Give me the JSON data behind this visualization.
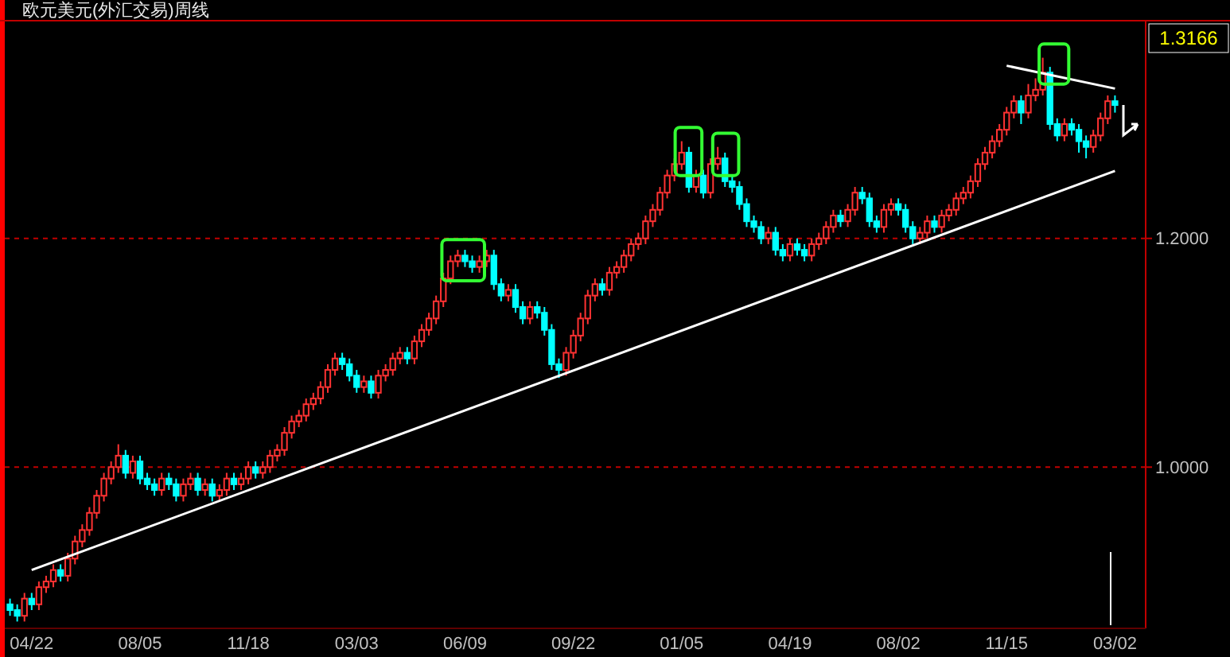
{
  "chart_data": {
    "type": "candlestick",
    "title": "欧元美元(外汇交易)周线",
    "categories": [
      null,
      null,
      null,
      "04/22",
      null,
      null,
      null,
      null,
      null,
      null,
      null,
      null,
      null,
      null,
      null,
      null,
      null,
      null,
      "08/05",
      null,
      null,
      null,
      null,
      null,
      null,
      null,
      null,
      null,
      null,
      null,
      null,
      null,
      null,
      "11/18",
      null,
      null,
      null,
      null,
      null,
      null,
      null,
      null,
      null,
      null,
      null,
      null,
      null,
      null,
      "03/03",
      null,
      null,
      null,
      null,
      null,
      null,
      null,
      null,
      null,
      null,
      null,
      null,
      null,
      null,
      "06/09",
      null,
      null,
      null,
      null,
      null,
      null,
      null,
      null,
      null,
      null,
      null,
      null,
      null,
      null,
      "09/22",
      null,
      null,
      null,
      null,
      null,
      null,
      null,
      null,
      null,
      null,
      null,
      null,
      null,
      null,
      "01/05",
      null,
      null,
      null,
      null,
      null,
      null,
      null,
      null,
      null,
      null,
      null,
      null,
      null,
      null,
      "04/19",
      null,
      null,
      null,
      null,
      null,
      null,
      null,
      null,
      null,
      null,
      null,
      null,
      null,
      null,
      "08/02",
      null,
      null,
      null,
      null,
      null,
      null,
      null,
      null,
      null,
      null,
      null,
      null,
      null,
      null,
      "11/15",
      null,
      null,
      null,
      null,
      null,
      null,
      null,
      null,
      null,
      null,
      null,
      null,
      null,
      null,
      "03/02"
    ],
    "ohlc": [
      [
        0.88,
        0.885,
        0.87,
        0.875
      ],
      [
        0.875,
        0.88,
        0.865,
        0.87
      ],
      [
        0.87,
        0.89,
        0.865,
        0.885
      ],
      [
        0.885,
        0.89,
        0.875,
        0.88
      ],
      [
        0.88,
        0.9,
        0.875,
        0.895
      ],
      [
        0.895,
        0.905,
        0.89,
        0.9
      ],
      [
        0.9,
        0.915,
        0.895,
        0.91
      ],
      [
        0.91,
        0.915,
        0.9,
        0.905
      ],
      [
        0.905,
        0.925,
        0.9,
        0.92
      ],
      [
        0.92,
        0.94,
        0.915,
        0.935
      ],
      [
        0.935,
        0.95,
        0.93,
        0.945
      ],
      [
        0.945,
        0.965,
        0.94,
        0.96
      ],
      [
        0.96,
        0.98,
        0.955,
        0.975
      ],
      [
        0.975,
        0.995,
        0.97,
        0.99
      ],
      [
        0.99,
        1.005,
        0.985,
        1.0
      ],
      [
        1.0,
        1.02,
        0.995,
        1.01
      ],
      [
        1.01,
        1.015,
        0.99,
        0.995
      ],
      [
        0.995,
        1.01,
        0.99,
        1.005
      ],
      [
        1.005,
        1.01,
        0.985,
        0.99
      ],
      [
        0.99,
        0.995,
        0.98,
        0.985
      ],
      [
        0.985,
        0.99,
        0.975,
        0.98
      ],
      [
        0.98,
        0.995,
        0.975,
        0.99
      ],
      [
        0.99,
        0.995,
        0.98,
        0.985
      ],
      [
        0.985,
        0.99,
        0.97,
        0.975
      ],
      [
        0.975,
        0.99,
        0.97,
        0.985
      ],
      [
        0.985,
        0.995,
        0.98,
        0.99
      ],
      [
        0.99,
        0.995,
        0.975,
        0.98
      ],
      [
        0.98,
        0.99,
        0.975,
        0.985
      ],
      [
        0.985,
        0.99,
        0.97,
        0.975
      ],
      [
        0.975,
        0.985,
        0.97,
        0.98
      ],
      [
        0.98,
        0.995,
        0.975,
        0.99
      ],
      [
        0.99,
        0.995,
        0.98,
        0.985
      ],
      [
        0.985,
        0.995,
        0.98,
        0.99
      ],
      [
        0.99,
        1.005,
        0.985,
        1.0
      ],
      [
        1.0,
        1.005,
        0.99,
        0.995
      ],
      [
        0.995,
        1.005,
        0.99,
        1.0
      ],
      [
        1.0,
        1.015,
        0.995,
        1.01
      ],
      [
        1.01,
        1.02,
        1.005,
        1.015
      ],
      [
        1.015,
        1.035,
        1.01,
        1.03
      ],
      [
        1.03,
        1.045,
        1.025,
        1.04
      ],
      [
        1.04,
        1.05,
        1.035,
        1.045
      ],
      [
        1.045,
        1.06,
        1.04,
        1.055
      ],
      [
        1.055,
        1.065,
        1.05,
        1.06
      ],
      [
        1.06,
        1.075,
        1.055,
        1.07
      ],
      [
        1.07,
        1.09,
        1.065,
        1.085
      ],
      [
        1.085,
        1.1,
        1.08,
        1.095
      ],
      [
        1.095,
        1.1,
        1.085,
        1.09
      ],
      [
        1.09,
        1.095,
        1.075,
        1.08
      ],
      [
        1.08,
        1.085,
        1.065,
        1.07
      ],
      [
        1.07,
        1.08,
        1.065,
        1.075
      ],
      [
        1.075,
        1.08,
        1.06,
        1.065
      ],
      [
        1.065,
        1.085,
        1.06,
        1.08
      ],
      [
        1.08,
        1.09,
        1.075,
        1.085
      ],
      [
        1.085,
        1.1,
        1.08,
        1.095
      ],
      [
        1.095,
        1.105,
        1.09,
        1.1
      ],
      [
        1.1,
        1.105,
        1.09,
        1.095
      ],
      [
        1.095,
        1.115,
        1.09,
        1.11
      ],
      [
        1.11,
        1.125,
        1.105,
        1.12
      ],
      [
        1.12,
        1.135,
        1.115,
        1.13
      ],
      [
        1.13,
        1.15,
        1.125,
        1.145
      ],
      [
        1.145,
        1.17,
        1.14,
        1.165
      ],
      [
        1.165,
        1.185,
        1.16,
        1.18
      ],
      [
        1.18,
        1.19,
        1.175,
        1.185
      ],
      [
        1.185,
        1.19,
        1.175,
        1.18
      ],
      [
        1.18,
        1.185,
        1.17,
        1.175
      ],
      [
        1.175,
        1.185,
        1.17,
        1.18
      ],
      [
        1.18,
        1.19,
        1.175,
        1.185
      ],
      [
        1.185,
        1.19,
        1.155,
        1.16
      ],
      [
        1.16,
        1.165,
        1.145,
        1.15
      ],
      [
        1.15,
        1.16,
        1.145,
        1.155
      ],
      [
        1.155,
        1.16,
        1.135,
        1.14
      ],
      [
        1.14,
        1.145,
        1.125,
        1.13
      ],
      [
        1.13,
        1.145,
        1.125,
        1.14
      ],
      [
        1.14,
        1.145,
        1.13,
        1.135
      ],
      [
        1.135,
        1.14,
        1.115,
        1.12
      ],
      [
        1.12,
        1.125,
        1.085,
        1.09
      ],
      [
        1.09,
        1.095,
        1.078,
        1.085
      ],
      [
        1.085,
        1.105,
        1.08,
        1.1
      ],
      [
        1.1,
        1.12,
        1.095,
        1.115
      ],
      [
        1.115,
        1.135,
        1.11,
        1.13
      ],
      [
        1.13,
        1.155,
        1.125,
        1.15
      ],
      [
        1.15,
        1.165,
        1.145,
        1.16
      ],
      [
        1.16,
        1.165,
        1.15,
        1.155
      ],
      [
        1.155,
        1.175,
        1.15,
        1.17
      ],
      [
        1.17,
        1.18,
        1.165,
        1.175
      ],
      [
        1.175,
        1.19,
        1.17,
        1.185
      ],
      [
        1.185,
        1.2,
        1.18,
        1.195
      ],
      [
        1.195,
        1.205,
        1.19,
        1.2
      ],
      [
        1.2,
        1.22,
        1.195,
        1.215
      ],
      [
        1.215,
        1.23,
        1.21,
        1.225
      ],
      [
        1.225,
        1.245,
        1.22,
        1.24
      ],
      [
        1.24,
        1.26,
        1.235,
        1.255
      ],
      [
        1.255,
        1.27,
        1.25,
        1.265
      ],
      [
        1.265,
        1.285,
        1.26,
        1.275
      ],
      [
        1.275,
        1.28,
        1.24,
        1.245
      ],
      [
        1.245,
        1.26,
        1.24,
        1.255
      ],
      [
        1.255,
        1.26,
        1.235,
        1.24
      ],
      [
        1.24,
        1.27,
        1.235,
        1.265
      ],
      [
        1.265,
        1.28,
        1.26,
        1.27
      ],
      [
        1.27,
        1.275,
        1.245,
        1.25
      ],
      [
        1.25,
        1.255,
        1.24,
        1.245
      ],
      [
        1.245,
        1.25,
        1.225,
        1.23
      ],
      [
        1.23,
        1.235,
        1.21,
        1.215
      ],
      [
        1.215,
        1.22,
        1.205,
        1.21
      ],
      [
        1.21,
        1.215,
        1.195,
        1.2
      ],
      [
        1.2,
        1.21,
        1.195,
        1.205
      ],
      [
        1.205,
        1.21,
        1.185,
        1.19
      ],
      [
        1.19,
        1.195,
        1.18,
        1.185
      ],
      [
        1.185,
        1.2,
        1.18,
        1.195
      ],
      [
        1.195,
        1.2,
        1.185,
        1.19
      ],
      [
        1.19,
        1.195,
        1.18,
        1.185
      ],
      [
        1.185,
        1.2,
        1.18,
        1.195
      ],
      [
        1.195,
        1.205,
        1.19,
        1.2
      ],
      [
        1.2,
        1.215,
        1.195,
        1.21
      ],
      [
        1.21,
        1.225,
        1.205,
        1.22
      ],
      [
        1.22,
        1.225,
        1.21,
        1.215
      ],
      [
        1.215,
        1.23,
        1.21,
        1.225
      ],
      [
        1.225,
        1.245,
        1.22,
        1.24
      ],
      [
        1.24,
        1.245,
        1.23,
        1.235
      ],
      [
        1.235,
        1.24,
        1.21,
        1.215
      ],
      [
        1.215,
        1.22,
        1.205,
        1.21
      ],
      [
        1.21,
        1.23,
        1.205,
        1.225
      ],
      [
        1.225,
        1.235,
        1.22,
        1.23
      ],
      [
        1.23,
        1.235,
        1.22,
        1.225
      ],
      [
        1.225,
        1.23,
        1.205,
        1.21
      ],
      [
        1.21,
        1.215,
        1.195,
        1.2
      ],
      [
        1.2,
        1.21,
        1.195,
        1.205
      ],
      [
        1.205,
        1.22,
        1.2,
        1.215
      ],
      [
        1.215,
        1.22,
        1.205,
        1.21
      ],
      [
        1.21,
        1.225,
        1.205,
        1.22
      ],
      [
        1.22,
        1.23,
        1.215,
        1.225
      ],
      [
        1.225,
        1.24,
        1.22,
        1.235
      ],
      [
        1.235,
        1.245,
        1.23,
        1.24
      ],
      [
        1.24,
        1.255,
        1.235,
        1.25
      ],
      [
        1.25,
        1.27,
        1.245,
        1.265
      ],
      [
        1.265,
        1.28,
        1.26,
        1.275
      ],
      [
        1.275,
        1.29,
        1.27,
        1.285
      ],
      [
        1.285,
        1.3,
        1.28,
        1.295
      ],
      [
        1.295,
        1.315,
        1.29,
        1.31
      ],
      [
        1.31,
        1.325,
        1.305,
        1.32
      ],
      [
        1.32,
        1.325,
        1.3,
        1.31
      ],
      [
        1.31,
        1.335,
        1.305,
        1.325
      ],
      [
        1.325,
        1.34,
        1.32,
        1.33
      ],
      [
        1.33,
        1.358,
        1.325,
        1.345
      ],
      [
        1.345,
        1.35,
        1.295,
        1.3
      ],
      [
        1.3,
        1.305,
        1.285,
        1.29
      ],
      [
        1.29,
        1.305,
        1.285,
        1.3
      ],
      [
        1.3,
        1.305,
        1.29,
        1.295
      ],
      [
        1.295,
        1.3,
        1.275,
        1.285
      ],
      [
        1.285,
        1.29,
        1.27,
        1.28
      ],
      [
        1.28,
        1.295,
        1.275,
        1.29
      ],
      [
        1.29,
        1.31,
        1.285,
        1.305
      ],
      [
        1.305,
        1.325,
        1.3,
        1.32
      ],
      [
        1.32,
        1.325,
        1.31,
        1.3166
      ]
    ],
    "colors": [
      "#00ffff",
      "#00ffff",
      "#ff3232",
      "#00ffff",
      "#ff3232",
      "#ff3232",
      "#ff3232",
      "#00ffff",
      "#ff3232",
      "#ff3232",
      "#ff3232",
      "#ff3232",
      "#ff3232",
      "#ff3232",
      "#ff3232",
      "#ff3232",
      "#00ffff",
      "#ff3232",
      "#00ffff",
      "#00ffff",
      "#00ffff",
      "#ff3232",
      "#00ffff",
      "#00ffff",
      "#ff3232",
      "#ff3232",
      "#00ffff",
      "#ff3232",
      "#00ffff",
      "#ff3232",
      "#ff3232",
      "#00ffff",
      "#ff3232",
      "#ff3232",
      "#00ffff",
      "#ff3232",
      "#ff3232",
      "#ff3232",
      "#ff3232",
      "#ff3232",
      "#ff3232",
      "#ff3232",
      "#ff3232",
      "#ff3232",
      "#ff3232",
      "#ff3232",
      "#00ffff",
      "#00ffff",
      "#00ffff",
      "#ff3232",
      "#00ffff",
      "#ff3232",
      "#ff3232",
      "#ff3232",
      "#ff3232",
      "#00ffff",
      "#ff3232",
      "#ff3232",
      "#ff3232",
      "#ff3232",
      "#ff3232",
      "#ff3232",
      "#ff3232",
      "#00ffff",
      "#00ffff",
      "#ff3232",
      "#ff3232",
      "#00ffff",
      "#00ffff",
      "#ff3232",
      "#00ffff",
      "#00ffff",
      "#ff3232",
      "#00ffff",
      "#00ffff",
      "#00ffff",
      "#00ffff",
      "#ff3232",
      "#ff3232",
      "#ff3232",
      "#ff3232",
      "#ff3232",
      "#00ffff",
      "#ff3232",
      "#ff3232",
      "#ff3232",
      "#ff3232",
      "#ff3232",
      "#ff3232",
      "#ff3232",
      "#ff3232",
      "#ff3232",
      "#ff3232",
      "#ff3232",
      "#00ffff",
      "#ff3232",
      "#00ffff",
      "#ff3232",
      "#ff3232",
      "#00ffff",
      "#00ffff",
      "#00ffff",
      "#00ffff",
      "#00ffff",
      "#00ffff",
      "#ff3232",
      "#00ffff",
      "#00ffff",
      "#ff3232",
      "#00ffff",
      "#00ffff",
      "#ff3232",
      "#ff3232",
      "#ff3232",
      "#ff3232",
      "#00ffff",
      "#ff3232",
      "#ff3232",
      "#00ffff",
      "#00ffff",
      "#00ffff",
      "#ff3232",
      "#ff3232",
      "#00ffff",
      "#00ffff",
      "#00ffff",
      "#ff3232",
      "#ff3232",
      "#00ffff",
      "#ff3232",
      "#ff3232",
      "#ff3232",
      "#ff3232",
      "#ff3232",
      "#ff3232",
      "#ff3232",
      "#ff3232",
      "#ff3232",
      "#ff3232",
      "#ff3232",
      "#00ffff",
      "#ff3232",
      "#ff3232",
      "#ff3232",
      "#00ffff",
      "#00ffff",
      "#ff3232",
      "#00ffff",
      "#00ffff",
      "#00ffff",
      "#ff3232",
      "#ff3232",
      "#ff3232",
      "#00ffff"
    ],
    "series": [
      {
        "type": "line",
        "x": [
          "04/22",
          "03/02"
        ],
        "values": [
          0.91,
          1.259
        ],
        "color": "#ffffff"
      },
      {
        "type": "line",
        "x": [
          "11/15",
          "03/02"
        ],
        "values": [
          1.351,
          1.331
        ],
        "color": "#ffffff"
      }
    ],
    "ylim": [
      0.859,
      1.389
    ],
    "yticks": [
      {
        "value": 1.0,
        "label": "1.0000"
      },
      {
        "value": 1.2,
        "label": "1.2000"
      }
    ],
    "grid": "y",
    "annotations": [
      "1.3166"
    ]
  }
}
